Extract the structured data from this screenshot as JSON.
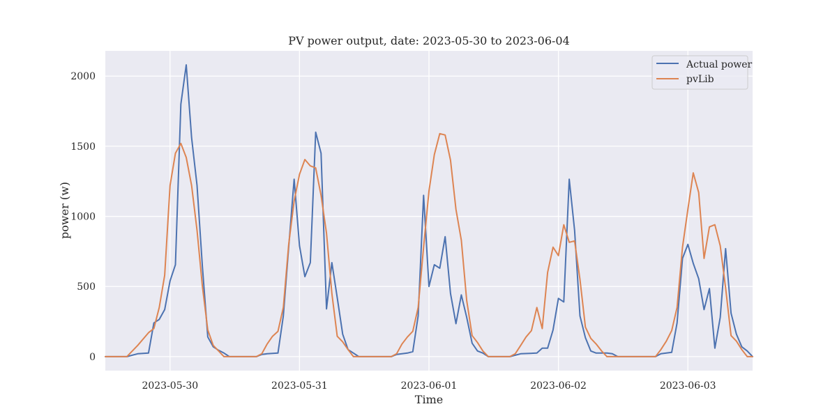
{
  "chart_data": {
    "type": "line",
    "title": "PV power output, date: 2023-05-30 to 2023-06-04",
    "xlabel": "Time",
    "ylabel": "power (w)",
    "x_start": "2023-05-29 12:00",
    "x_end": "2023-06-03 12:00",
    "xlim": [
      "2023-05-29 12:00",
      "2023-06-03 12:00"
    ],
    "ylim": [
      -100,
      2180
    ],
    "x_ticks": [
      "2023-05-30",
      "2023-05-31",
      "2023-06-01",
      "2023-06-02",
      "2023-06-03"
    ],
    "y_ticks": [
      0,
      500,
      1000,
      1500,
      2000
    ],
    "grid": true,
    "legend_position": "top-right",
    "series": [
      {
        "name": "Actual power",
        "color": "#4c72b0",
        "points": [
          [
            "2023-05-29 12:00",
            0
          ],
          [
            "2023-05-29 16:00",
            0
          ],
          [
            "2023-05-29 18:00",
            20
          ],
          [
            "2023-05-29 20:00",
            25
          ],
          [
            "2023-05-29 21:00",
            240
          ],
          [
            "2023-05-29 22:00",
            265
          ],
          [
            "2023-05-29 23:00",
            335
          ],
          [
            "2023-05-30 00:00",
            540
          ],
          [
            "2023-05-30 01:00",
            655
          ],
          [
            "2023-05-30 02:00",
            1800
          ],
          [
            "2023-05-30 03:00",
            2080
          ],
          [
            "2023-05-30 04:00",
            1560
          ],
          [
            "2023-05-30 05:00",
            1220
          ],
          [
            "2023-05-30 06:00",
            640
          ],
          [
            "2023-05-30 07:00",
            140
          ],
          [
            "2023-05-30 08:00",
            70
          ],
          [
            "2023-05-30 09:00",
            45
          ],
          [
            "2023-05-30 10:00",
            25
          ],
          [
            "2023-05-30 11:00",
            0
          ],
          [
            "2023-05-30 16:00",
            0
          ],
          [
            "2023-05-30 17:00",
            15
          ],
          [
            "2023-05-30 18:00",
            20
          ],
          [
            "2023-05-30 20:00",
            25
          ],
          [
            "2023-05-30 21:00",
            290
          ],
          [
            "2023-05-30 22:00",
            780
          ],
          [
            "2023-05-30 23:00",
            1265
          ],
          [
            "2023-05-31 00:00",
            790
          ],
          [
            "2023-05-31 01:00",
            570
          ],
          [
            "2023-05-31 02:00",
            670
          ],
          [
            "2023-05-31 03:00",
            1600
          ],
          [
            "2023-05-31 04:00",
            1450
          ],
          [
            "2023-05-31 05:00",
            340
          ],
          [
            "2023-05-31 06:00",
            670
          ],
          [
            "2023-05-31 07:00",
            420
          ],
          [
            "2023-05-31 08:00",
            160
          ],
          [
            "2023-05-31 09:00",
            50
          ],
          [
            "2023-05-31 10:00",
            25
          ],
          [
            "2023-05-31 11:00",
            0
          ],
          [
            "2023-05-31 17:00",
            0
          ],
          [
            "2023-05-31 18:00",
            15
          ],
          [
            "2023-05-31 19:00",
            20
          ],
          [
            "2023-05-31 20:00",
            25
          ],
          [
            "2023-05-31 21:00",
            35
          ],
          [
            "2023-05-31 22:00",
            290
          ],
          [
            "2023-05-31 23:00",
            1150
          ],
          [
            "2023-06-01 00:00",
            500
          ],
          [
            "2023-06-01 01:00",
            655
          ],
          [
            "2023-06-01 02:00",
            630
          ],
          [
            "2023-06-01 03:00",
            855
          ],
          [
            "2023-06-01 04:00",
            450
          ],
          [
            "2023-06-01 05:00",
            235
          ],
          [
            "2023-06-01 06:00",
            440
          ],
          [
            "2023-06-01 07:00",
            280
          ],
          [
            "2023-06-01 08:00",
            95
          ],
          [
            "2023-06-01 09:00",
            40
          ],
          [
            "2023-06-01 10:00",
            25
          ],
          [
            "2023-06-01 11:00",
            0
          ],
          [
            "2023-06-01 15:00",
            0
          ],
          [
            "2023-06-01 16:00",
            10
          ],
          [
            "2023-06-01 17:00",
            20
          ],
          [
            "2023-06-01 20:00",
            25
          ],
          [
            "2023-06-01 21:00",
            60
          ],
          [
            "2023-06-01 22:00",
            60
          ],
          [
            "2023-06-01 23:00",
            190
          ],
          [
            "2023-06-02 00:00",
            415
          ],
          [
            "2023-06-02 01:00",
            390
          ],
          [
            "2023-06-02 02:00",
            1265
          ],
          [
            "2023-06-02 03:00",
            900
          ],
          [
            "2023-06-02 04:00",
            290
          ],
          [
            "2023-06-02 05:00",
            135
          ],
          [
            "2023-06-02 06:00",
            40
          ],
          [
            "2023-06-02 07:00",
            25
          ],
          [
            "2023-06-02 09:00",
            25
          ],
          [
            "2023-06-02 10:00",
            20
          ],
          [
            "2023-06-02 11:00",
            0
          ],
          [
            "2023-06-02 18:00",
            0
          ],
          [
            "2023-06-02 19:00",
            20
          ],
          [
            "2023-06-02 20:00",
            25
          ],
          [
            "2023-06-02 21:00",
            30
          ],
          [
            "2023-06-02 22:00",
            240
          ],
          [
            "2023-06-02 23:00",
            700
          ],
          [
            "2023-06-03 00:00",
            800
          ],
          [
            "2023-06-03 01:00",
            665
          ],
          [
            "2023-06-03 02:00",
            555
          ],
          [
            "2023-06-03 03:00",
            335
          ],
          [
            "2023-06-03 04:00",
            485
          ],
          [
            "2023-06-03 05:00",
            60
          ],
          [
            "2023-06-03 06:00",
            280
          ],
          [
            "2023-06-03 07:00",
            770
          ],
          [
            "2023-06-03 08:00",
            310
          ],
          [
            "2023-06-03 09:00",
            160
          ],
          [
            "2023-06-03 10:00",
            70
          ],
          [
            "2023-06-03 11:00",
            40
          ],
          [
            "2023-06-03 12:00",
            0
          ]
        ]
      },
      {
        "name": "pvLib",
        "color": "#dd8452",
        "points": [
          [
            "2023-05-29 12:00",
            0
          ],
          [
            "2023-05-29 16:00",
            0
          ],
          [
            "2023-05-29 18:00",
            80
          ],
          [
            "2023-05-29 20:00",
            170
          ],
          [
            "2023-05-29 21:00",
            200
          ],
          [
            "2023-05-29 22:00",
            350
          ],
          [
            "2023-05-29 23:00",
            580
          ],
          [
            "2023-05-30 00:00",
            1220
          ],
          [
            "2023-05-30 01:00",
            1450
          ],
          [
            "2023-05-30 02:00",
            1520
          ],
          [
            "2023-05-30 03:00",
            1420
          ],
          [
            "2023-05-30 04:00",
            1220
          ],
          [
            "2023-05-30 05:00",
            900
          ],
          [
            "2023-05-30 06:00",
            500
          ],
          [
            "2023-05-30 07:00",
            190
          ],
          [
            "2023-05-30 08:00",
            80
          ],
          [
            "2023-05-30 09:00",
            40
          ],
          [
            "2023-05-30 10:00",
            0
          ],
          [
            "2023-05-30 16:00",
            0
          ],
          [
            "2023-05-30 17:00",
            20
          ],
          [
            "2023-05-30 18:00",
            90
          ],
          [
            "2023-05-30 19:00",
            145
          ],
          [
            "2023-05-30 20:00",
            180
          ],
          [
            "2023-05-30 21:00",
            350
          ],
          [
            "2023-05-30 22:00",
            800
          ],
          [
            "2023-05-30 23:00",
            1110
          ],
          [
            "2023-05-31 00:00",
            1300
          ],
          [
            "2023-05-31 01:00",
            1405
          ],
          [
            "2023-05-31 02:00",
            1360
          ],
          [
            "2023-05-31 03:00",
            1345
          ],
          [
            "2023-05-31 04:00",
            1150
          ],
          [
            "2023-05-31 05:00",
            880
          ],
          [
            "2023-05-31 06:00",
            450
          ],
          [
            "2023-05-31 07:00",
            145
          ],
          [
            "2023-05-31 08:00",
            105
          ],
          [
            "2023-05-31 09:00",
            50
          ],
          [
            "2023-05-31 10:00",
            0
          ],
          [
            "2023-05-31 17:00",
            0
          ],
          [
            "2023-05-31 18:00",
            20
          ],
          [
            "2023-05-31 19:00",
            90
          ],
          [
            "2023-05-31 20:00",
            140
          ],
          [
            "2023-05-31 21:00",
            180
          ],
          [
            "2023-05-31 22:00",
            350
          ],
          [
            "2023-05-31 23:00",
            780
          ],
          [
            "2023-06-01 00:00",
            1180
          ],
          [
            "2023-06-01 01:00",
            1440
          ],
          [
            "2023-06-01 02:00",
            1590
          ],
          [
            "2023-06-01 03:00",
            1580
          ],
          [
            "2023-06-01 04:00",
            1400
          ],
          [
            "2023-06-01 05:00",
            1050
          ],
          [
            "2023-06-01 06:00",
            830
          ],
          [
            "2023-06-01 07:00",
            400
          ],
          [
            "2023-06-01 08:00",
            150
          ],
          [
            "2023-06-01 09:00",
            100
          ],
          [
            "2023-06-01 10:00",
            40
          ],
          [
            "2023-06-01 11:00",
            0
          ],
          [
            "2023-06-01 15:00",
            0
          ],
          [
            "2023-06-01 16:00",
            20
          ],
          [
            "2023-06-01 17:00",
            80
          ],
          [
            "2023-06-01 18:00",
            140
          ],
          [
            "2023-06-01 19:00",
            185
          ],
          [
            "2023-06-01 20:00",
            350
          ],
          [
            "2023-06-01 21:00",
            200
          ],
          [
            "2023-06-01 22:00",
            600
          ],
          [
            "2023-06-01 23:00",
            780
          ],
          [
            "2023-06-02 00:00",
            720
          ],
          [
            "2023-06-02 01:00",
            940
          ],
          [
            "2023-06-02 02:00",
            815
          ],
          [
            "2023-06-02 03:00",
            825
          ],
          [
            "2023-06-02 04:00",
            550
          ],
          [
            "2023-06-02 05:00",
            210
          ],
          [
            "2023-06-02 06:00",
            130
          ],
          [
            "2023-06-02 07:00",
            90
          ],
          [
            "2023-06-02 08:00",
            40
          ],
          [
            "2023-06-02 09:00",
            0
          ],
          [
            "2023-06-02 18:00",
            0
          ],
          [
            "2023-06-02 19:00",
            50
          ],
          [
            "2023-06-02 20:00",
            110
          ],
          [
            "2023-06-02 21:00",
            185
          ],
          [
            "2023-06-02 22:00",
            350
          ],
          [
            "2023-06-02 23:00",
            780
          ],
          [
            "2023-06-03 00:00",
            1050
          ],
          [
            "2023-06-03 01:00",
            1310
          ],
          [
            "2023-06-03 02:00",
            1170
          ],
          [
            "2023-06-03 03:00",
            700
          ],
          [
            "2023-06-03 04:00",
            925
          ],
          [
            "2023-06-03 05:00",
            940
          ],
          [
            "2023-06-03 06:00",
            790
          ],
          [
            "2023-06-03 07:00",
            490
          ],
          [
            "2023-06-03 08:00",
            150
          ],
          [
            "2023-06-03 09:00",
            110
          ],
          [
            "2023-06-03 10:00",
            50
          ],
          [
            "2023-06-03 11:00",
            0
          ],
          [
            "2023-06-03 12:00",
            0
          ]
        ]
      }
    ]
  }
}
